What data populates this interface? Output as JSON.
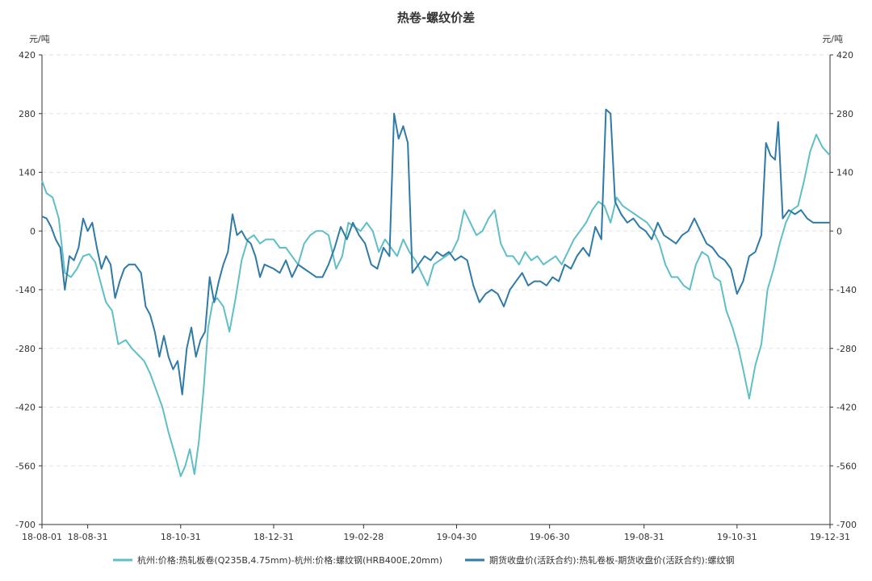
{
  "chart_data": {
    "type": "line",
    "title": "热卷-螺纹价差",
    "y_unit_left": "元/吨",
    "y_unit_right": "元/吨",
    "ylim": [
      -700,
      420
    ],
    "yticks": [
      420,
      280,
      140,
      0,
      -140,
      -280,
      -420,
      -560,
      -700
    ],
    "x_start": "2018-08-01",
    "x_end": "2019-12-31",
    "xticks": [
      {
        "date": "2018-08-01",
        "label": "18-08-01"
      },
      {
        "date": "2018-08-31",
        "label": "18-08-31"
      },
      {
        "date": "2018-10-31",
        "label": "18-10-31"
      },
      {
        "date": "2018-12-31",
        "label": "18-12-31"
      },
      {
        "date": "2019-02-28",
        "label": "19-02-28"
      },
      {
        "date": "2019-04-30",
        "label": "19-04-30"
      },
      {
        "date": "2019-06-30",
        "label": "19-06-30"
      },
      {
        "date": "2019-08-31",
        "label": "19-08-31"
      },
      {
        "date": "2019-10-31",
        "label": "19-10-31"
      },
      {
        "date": "2019-12-31",
        "label": "19-12-31"
      }
    ],
    "grid": true,
    "legend_position": "bottom",
    "series": [
      {
        "name": "杭州:价格:热轧板卷(Q235B,4.75mm)-杭州:价格:螺纹钢(HRB400E,20mm)",
        "color": "#5fbfc5",
        "points": [
          [
            "2018-08-01",
            120
          ],
          [
            "2018-08-04",
            90
          ],
          [
            "2018-08-08",
            80
          ],
          [
            "2018-08-12",
            30
          ],
          [
            "2018-08-16",
            -100
          ],
          [
            "2018-08-20",
            -110
          ],
          [
            "2018-08-24",
            -90
          ],
          [
            "2018-08-28",
            -60
          ],
          [
            "2018-09-01",
            -55
          ],
          [
            "2018-09-05",
            -75
          ],
          [
            "2018-09-09",
            -130
          ],
          [
            "2018-09-12",
            -170
          ],
          [
            "2018-09-16",
            -190
          ],
          [
            "2018-09-20",
            -270
          ],
          [
            "2018-09-25",
            -260
          ],
          [
            "2018-09-29",
            -280
          ],
          [
            "2018-10-03",
            -295
          ],
          [
            "2018-10-07",
            -310
          ],
          [
            "2018-10-11",
            -340
          ],
          [
            "2018-10-15",
            -380
          ],
          [
            "2018-10-19",
            -420
          ],
          [
            "2018-10-23",
            -480
          ],
          [
            "2018-10-27",
            -530
          ],
          [
            "2018-10-31",
            -585
          ],
          [
            "2018-11-03",
            -560
          ],
          [
            "2018-11-06",
            -520
          ],
          [
            "2018-11-09",
            -580
          ],
          [
            "2018-11-12",
            -500
          ],
          [
            "2018-11-15",
            -380
          ],
          [
            "2018-11-18",
            -230
          ],
          [
            "2018-11-21",
            -170
          ],
          [
            "2018-11-24",
            -160
          ],
          [
            "2018-11-28",
            -180
          ],
          [
            "2018-12-02",
            -240
          ],
          [
            "2018-12-06",
            -160
          ],
          [
            "2018-12-10",
            -70
          ],
          [
            "2018-12-14",
            -20
          ],
          [
            "2018-12-18",
            -10
          ],
          [
            "2018-12-22",
            -30
          ],
          [
            "2018-12-26",
            -20
          ],
          [
            "2018-12-31",
            -20
          ],
          [
            "2019-01-04",
            -40
          ],
          [
            "2019-01-08",
            -40
          ],
          [
            "2019-01-12",
            -60
          ],
          [
            "2019-01-16",
            -80
          ],
          [
            "2019-01-20",
            -30
          ],
          [
            "2019-01-24",
            -10
          ],
          [
            "2019-01-28",
            0
          ],
          [
            "2019-02-01",
            0
          ],
          [
            "2019-02-05",
            -10
          ],
          [
            "2019-02-10",
            -90
          ],
          [
            "2019-02-14",
            -60
          ],
          [
            "2019-02-18",
            20
          ],
          [
            "2019-02-22",
            10
          ],
          [
            "2019-02-26",
            0
          ],
          [
            "2019-03-02",
            20
          ],
          [
            "2019-03-06",
            0
          ],
          [
            "2019-03-10",
            -50
          ],
          [
            "2019-03-14",
            -20
          ],
          [
            "2019-03-18",
            -40
          ],
          [
            "2019-03-22",
            -60
          ],
          [
            "2019-03-26",
            -20
          ],
          [
            "2019-03-30",
            -50
          ],
          [
            "2019-04-03",
            -70
          ],
          [
            "2019-04-07",
            -100
          ],
          [
            "2019-04-11",
            -130
          ],
          [
            "2019-04-15",
            -80
          ],
          [
            "2019-04-19",
            -70
          ],
          [
            "2019-04-23",
            -60
          ],
          [
            "2019-04-27",
            -50
          ],
          [
            "2019-05-01",
            -20
          ],
          [
            "2019-05-05",
            50
          ],
          [
            "2019-05-09",
            20
          ],
          [
            "2019-05-13",
            -10
          ],
          [
            "2019-05-17",
            0
          ],
          [
            "2019-05-21",
            30
          ],
          [
            "2019-05-25",
            50
          ],
          [
            "2019-05-29",
            -30
          ],
          [
            "2019-06-02",
            -60
          ],
          [
            "2019-06-06",
            -60
          ],
          [
            "2019-06-10",
            -80
          ],
          [
            "2019-06-14",
            -50
          ],
          [
            "2019-06-18",
            -70
          ],
          [
            "2019-06-22",
            -60
          ],
          [
            "2019-06-26",
            -80
          ],
          [
            "2019-06-30",
            -70
          ],
          [
            "2019-07-04",
            -60
          ],
          [
            "2019-07-08",
            -80
          ],
          [
            "2019-07-12",
            -50
          ],
          [
            "2019-07-16",
            -20
          ],
          [
            "2019-07-20",
            0
          ],
          [
            "2019-07-24",
            20
          ],
          [
            "2019-07-28",
            50
          ],
          [
            "2019-08-01",
            70
          ],
          [
            "2019-08-05",
            60
          ],
          [
            "2019-08-09",
            20
          ],
          [
            "2019-08-13",
            80
          ],
          [
            "2019-08-17",
            60
          ],
          [
            "2019-08-21",
            50
          ],
          [
            "2019-08-25",
            40
          ],
          [
            "2019-08-29",
            30
          ],
          [
            "2019-09-02",
            20
          ],
          [
            "2019-09-06",
            0
          ],
          [
            "2019-09-10",
            -30
          ],
          [
            "2019-09-14",
            -80
          ],
          [
            "2019-09-18",
            -110
          ],
          [
            "2019-09-22",
            -110
          ],
          [
            "2019-09-26",
            -130
          ],
          [
            "2019-09-30",
            -140
          ],
          [
            "2019-10-04",
            -80
          ],
          [
            "2019-10-08",
            -50
          ],
          [
            "2019-10-12",
            -60
          ],
          [
            "2019-10-16",
            -110
          ],
          [
            "2019-10-20",
            -120
          ],
          [
            "2019-10-24",
            -190
          ],
          [
            "2019-10-28",
            -230
          ],
          [
            "2019-11-01",
            -280
          ],
          [
            "2019-11-04",
            -330
          ],
          [
            "2019-11-08",
            -400
          ],
          [
            "2019-11-12",
            -320
          ],
          [
            "2019-11-16",
            -270
          ],
          [
            "2019-11-20",
            -140
          ],
          [
            "2019-11-24",
            -90
          ],
          [
            "2019-11-28",
            -30
          ],
          [
            "2019-12-02",
            20
          ],
          [
            "2019-12-06",
            50
          ],
          [
            "2019-12-10",
            60
          ],
          [
            "2019-12-14",
            120
          ],
          [
            "2019-12-18",
            190
          ],
          [
            "2019-12-22",
            230
          ],
          [
            "2019-12-26",
            200
          ],
          [
            "2019-12-31",
            180
          ]
        ]
      },
      {
        "name": "期货收盘价(活跃合约):热轧卷板-期货收盘价(活跃合约):螺纹钢",
        "color": "#2f7aa6",
        "points": [
          [
            "2018-08-01",
            35
          ],
          [
            "2018-08-04",
            30
          ],
          [
            "2018-08-07",
            10
          ],
          [
            "2018-08-10",
            -20
          ],
          [
            "2018-08-13",
            -40
          ],
          [
            "2018-08-16",
            -140
          ],
          [
            "2018-08-19",
            -60
          ],
          [
            "2018-08-22",
            -70
          ],
          [
            "2018-08-25",
            -40
          ],
          [
            "2018-08-28",
            30
          ],
          [
            "2018-08-31",
            0
          ],
          [
            "2018-09-03",
            20
          ],
          [
            "2018-09-06",
            -40
          ],
          [
            "2018-09-09",
            -90
          ],
          [
            "2018-09-12",
            -60
          ],
          [
            "2018-09-15",
            -80
          ],
          [
            "2018-09-18",
            -160
          ],
          [
            "2018-09-21",
            -120
          ],
          [
            "2018-09-24",
            -90
          ],
          [
            "2018-09-27",
            -80
          ],
          [
            "2018-10-01",
            -80
          ],
          [
            "2018-10-05",
            -100
          ],
          [
            "2018-10-08",
            -180
          ],
          [
            "2018-10-11",
            -200
          ],
          [
            "2018-10-14",
            -240
          ],
          [
            "2018-10-17",
            -300
          ],
          [
            "2018-10-20",
            -250
          ],
          [
            "2018-10-23",
            -300
          ],
          [
            "2018-10-26",
            -330
          ],
          [
            "2018-10-29",
            -310
          ],
          [
            "2018-11-01",
            -390
          ],
          [
            "2018-11-04",
            -280
          ],
          [
            "2018-11-07",
            -230
          ],
          [
            "2018-11-10",
            -300
          ],
          [
            "2018-11-13",
            -260
          ],
          [
            "2018-11-16",
            -240
          ],
          [
            "2018-11-19",
            -110
          ],
          [
            "2018-11-22",
            -170
          ],
          [
            "2018-11-25",
            -120
          ],
          [
            "2018-11-28",
            -80
          ],
          [
            "2018-12-01",
            -50
          ],
          [
            "2018-12-04",
            40
          ],
          [
            "2018-12-07",
            -10
          ],
          [
            "2018-12-10",
            0
          ],
          [
            "2018-12-13",
            -20
          ],
          [
            "2018-12-16",
            -30
          ],
          [
            "2018-12-19",
            -60
          ],
          [
            "2018-12-22",
            -110
          ],
          [
            "2018-12-25",
            -80
          ],
          [
            "2018-12-31",
            -90
          ],
          [
            "2019-01-04",
            -100
          ],
          [
            "2019-01-08",
            -70
          ],
          [
            "2019-01-12",
            -110
          ],
          [
            "2019-01-16",
            -80
          ],
          [
            "2019-01-20",
            -90
          ],
          [
            "2019-01-24",
            -100
          ],
          [
            "2019-01-28",
            -110
          ],
          [
            "2019-02-01",
            -110
          ],
          [
            "2019-02-05",
            -80
          ],
          [
            "2019-02-09",
            -40
          ],
          [
            "2019-02-13",
            10
          ],
          [
            "2019-02-17",
            -20
          ],
          [
            "2019-02-21",
            20
          ],
          [
            "2019-02-25",
            -10
          ],
          [
            "2019-03-01",
            -30
          ],
          [
            "2019-03-05",
            -80
          ],
          [
            "2019-03-09",
            -90
          ],
          [
            "2019-03-13",
            -40
          ],
          [
            "2019-03-17",
            -60
          ],
          [
            "2019-03-20",
            280
          ],
          [
            "2019-03-23",
            220
          ],
          [
            "2019-03-26",
            250
          ],
          [
            "2019-03-29",
            210
          ],
          [
            "2019-04-01",
            -100
          ],
          [
            "2019-04-05",
            -80
          ],
          [
            "2019-04-09",
            -60
          ],
          [
            "2019-04-13",
            -70
          ],
          [
            "2019-04-17",
            -50
          ],
          [
            "2019-04-21",
            -60
          ],
          [
            "2019-04-25",
            -50
          ],
          [
            "2019-04-29",
            -70
          ],
          [
            "2019-05-03",
            -60
          ],
          [
            "2019-05-07",
            -70
          ],
          [
            "2019-05-11",
            -130
          ],
          [
            "2019-05-15",
            -170
          ],
          [
            "2019-05-19",
            -150
          ],
          [
            "2019-05-23",
            -140
          ],
          [
            "2019-05-27",
            -150
          ],
          [
            "2019-05-31",
            -180
          ],
          [
            "2019-06-04",
            -140
          ],
          [
            "2019-06-08",
            -120
          ],
          [
            "2019-06-12",
            -100
          ],
          [
            "2019-06-16",
            -130
          ],
          [
            "2019-06-20",
            -120
          ],
          [
            "2019-06-24",
            -120
          ],
          [
            "2019-06-28",
            -130
          ],
          [
            "2019-07-02",
            -110
          ],
          [
            "2019-07-06",
            -120
          ],
          [
            "2019-07-10",
            -80
          ],
          [
            "2019-07-14",
            -90
          ],
          [
            "2019-07-18",
            -60
          ],
          [
            "2019-07-22",
            -40
          ],
          [
            "2019-07-26",
            -60
          ],
          [
            "2019-07-30",
            10
          ],
          [
            "2019-08-03",
            -20
          ],
          [
            "2019-08-06",
            290
          ],
          [
            "2019-08-09",
            280
          ],
          [
            "2019-08-12",
            70
          ],
          [
            "2019-08-16",
            40
          ],
          [
            "2019-08-20",
            20
          ],
          [
            "2019-08-24",
            30
          ],
          [
            "2019-08-28",
            10
          ],
          [
            "2019-09-01",
            0
          ],
          [
            "2019-09-05",
            -20
          ],
          [
            "2019-09-09",
            20
          ],
          [
            "2019-09-13",
            -10
          ],
          [
            "2019-09-17",
            -20
          ],
          [
            "2019-09-21",
            -30
          ],
          [
            "2019-09-25",
            -10
          ],
          [
            "2019-09-29",
            0
          ],
          [
            "2019-10-03",
            30
          ],
          [
            "2019-10-07",
            0
          ],
          [
            "2019-10-11",
            -30
          ],
          [
            "2019-10-15",
            -40
          ],
          [
            "2019-10-19",
            -60
          ],
          [
            "2019-10-23",
            -70
          ],
          [
            "2019-10-27",
            -90
          ],
          [
            "2019-10-31",
            -150
          ],
          [
            "2019-11-04",
            -120
          ],
          [
            "2019-11-08",
            -60
          ],
          [
            "2019-11-12",
            -50
          ],
          [
            "2019-11-16",
            -10
          ],
          [
            "2019-11-19",
            210
          ],
          [
            "2019-11-22",
            180
          ],
          [
            "2019-11-25",
            170
          ],
          [
            "2019-11-27",
            260
          ],
          [
            "2019-11-30",
            30
          ],
          [
            "2019-12-04",
            50
          ],
          [
            "2019-12-08",
            40
          ],
          [
            "2019-12-12",
            50
          ],
          [
            "2019-12-16",
            30
          ],
          [
            "2019-12-20",
            20
          ],
          [
            "2019-12-24",
            20
          ],
          [
            "2019-12-31",
            20
          ]
        ]
      }
    ]
  }
}
